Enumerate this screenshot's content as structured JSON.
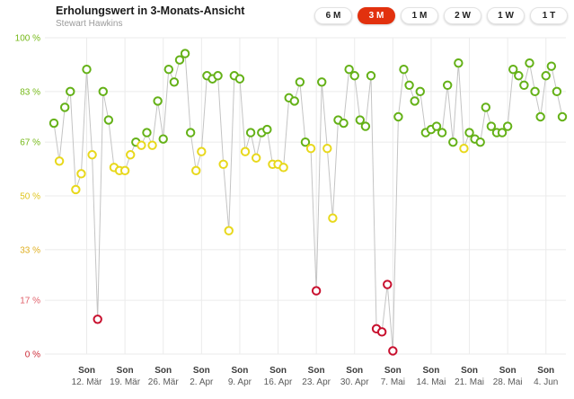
{
  "header": {
    "title": "Erholungswert in 3-Monats-Ansicht",
    "subtitle": "Stewart Hawkins",
    "time_ranges": [
      {
        "label": "6 M",
        "selected": false
      },
      {
        "label": "3 M",
        "selected": true
      },
      {
        "label": "1 M",
        "selected": false
      },
      {
        "label": "2 W",
        "selected": false
      },
      {
        "label": "1 W",
        "selected": false
      },
      {
        "label": "1 T",
        "selected": false
      }
    ]
  },
  "colors": {
    "accent_selected": "#e2310e"
  },
  "chart_data": {
    "type": "line",
    "title": "Erholungswert in 3-Monats-Ansicht",
    "series_name": "Erholungswert",
    "unit": "%",
    "ylim": [
      0,
      100
    ],
    "grid": true,
    "legend": false,
    "y_ticks": [
      {
        "value": 100,
        "label": "100 %",
        "color": "#74b816"
      },
      {
        "value": 83,
        "label": "83 %",
        "color": "#74b816"
      },
      {
        "value": 67,
        "label": "67 %",
        "color": "#74b816"
      },
      {
        "value": 50,
        "label": "50 %",
        "color": "#dfc51e"
      },
      {
        "value": 33,
        "label": "33 %",
        "color": "#dfae1e"
      },
      {
        "value": 17,
        "label": "17 %",
        "color": "#e0606a"
      },
      {
        "value": 0,
        "label": "0 %",
        "color": "#cc2936"
      }
    ],
    "x_ticks": [
      {
        "day_index": 6,
        "weekday": "Son",
        "date": "12. Mär"
      },
      {
        "day_index": 13,
        "weekday": "Son",
        "date": "19. Mär"
      },
      {
        "day_index": 20,
        "weekday": "Son",
        "date": "26. Mär"
      },
      {
        "day_index": 27,
        "weekday": "Son",
        "date": "2. Apr"
      },
      {
        "day_index": 34,
        "weekday": "Son",
        "date": "9. Apr"
      },
      {
        "day_index": 41,
        "weekday": "Son",
        "date": "16. Apr"
      },
      {
        "day_index": 48,
        "weekday": "Son",
        "date": "23. Apr"
      },
      {
        "day_index": 55,
        "weekday": "Son",
        "date": "30. Apr"
      },
      {
        "day_index": 62,
        "weekday": "Son",
        "date": "7. Mai"
      },
      {
        "day_index": 69,
        "weekday": "Son",
        "date": "14. Mai"
      },
      {
        "day_index": 76,
        "weekday": "Son",
        "date": "21. Mai"
      },
      {
        "day_index": 83,
        "weekday": "Son",
        "date": "28. Mai"
      },
      {
        "day_index": 90,
        "weekday": "Son",
        "date": "4. Jun"
      }
    ],
    "values": [
      73,
      61,
      78,
      83,
      52,
      57,
      90,
      63,
      11,
      83,
      74,
      59,
      58,
      58,
      63,
      67,
      66,
      70,
      66,
      80,
      68,
      90,
      86,
      93,
      95,
      70,
      58,
      64,
      88,
      87,
      88,
      60,
      39,
      88,
      87,
      64,
      70,
      62,
      70,
      71,
      60,
      60,
      59,
      81,
      80,
      86,
      67,
      65,
      20,
      86,
      65,
      43,
      74,
      73,
      90,
      88,
      74,
      72,
      88,
      8,
      7,
      22,
      1,
      75,
      90,
      85,
      80,
      83,
      70,
      71,
      72,
      70,
      85,
      67,
      92,
      65,
      70,
      68,
      67,
      78,
      72,
      70,
      70,
      72,
      90,
      88,
      85,
      92,
      83,
      75,
      88,
      91,
      83,
      75
    ],
    "point_color_rules": {
      "green_min": 67,
      "yellow_min": 30
    },
    "colors": {
      "green": "#64b117",
      "yellow": "#e8d81c",
      "red": "#c8102e",
      "line": "#c4c4c4",
      "grid": "#ebebeb",
      "x_label_weekday": "#3c3c3c",
      "x_label_date": "#5a5a5a"
    }
  }
}
